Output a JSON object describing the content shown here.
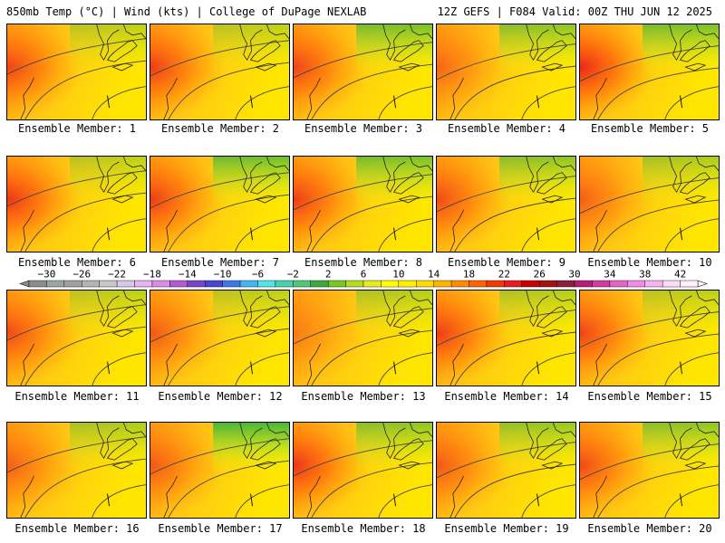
{
  "header": {
    "left": "850mb Temp (°C) | Wind (kts) | College of DuPage NEXLAB",
    "right": "12Z GEFS | F084 Valid: 00Z THU JUN 12 2025"
  },
  "panels": [
    {
      "label": "Ensemble Member: 1",
      "hot": 0.75,
      "cool": 0.35
    },
    {
      "label": "Ensemble Member: 2",
      "hot": 0.8,
      "cool": 0.35
    },
    {
      "label": "Ensemble Member: 3",
      "hot": 0.75,
      "cool": 0.7
    },
    {
      "label": "Ensemble Member: 4",
      "hot": 0.5,
      "cool": 0.6
    },
    {
      "label": "Ensemble Member: 5",
      "hot": 0.95,
      "cool": 0.7
    },
    {
      "label": "Ensemble Member: 6",
      "hot": 0.85,
      "cool": 0.35
    },
    {
      "label": "Ensemble Member: 7",
      "hot": 0.8,
      "cool": 0.75
    },
    {
      "label": "Ensemble Member: 8",
      "hot": 0.8,
      "cool": 0.7
    },
    {
      "label": "Ensemble Member: 9",
      "hot": 0.7,
      "cool": 0.6
    },
    {
      "label": "Ensemble Member: 10",
      "hot": 0.55,
      "cool": 0.45
    },
    {
      "label": "Ensemble Member: 11",
      "hot": 0.7,
      "cool": 0.35
    },
    {
      "label": "Ensemble Member: 12",
      "hot": 0.6,
      "cool": 0.35
    },
    {
      "label": "Ensemble Member: 13",
      "hot": 0.35,
      "cool": 0.4
    },
    {
      "label": "Ensemble Member: 14",
      "hot": 0.8,
      "cool": 0.4
    },
    {
      "label": "Ensemble Member: 15",
      "hot": 0.75,
      "cool": 0.35
    },
    {
      "label": "Ensemble Member: 16",
      "hot": 0.55,
      "cool": 0.45
    },
    {
      "label": "Ensemble Member: 17",
      "hot": 0.6,
      "cool": 0.95
    },
    {
      "label": "Ensemble Member: 18",
      "hot": 0.85,
      "cool": 0.6
    },
    {
      "label": "Ensemble Member: 19",
      "hot": 0.6,
      "cool": 0.55
    },
    {
      "label": "Ensemble Member: 20",
      "hot": 0.7,
      "cool": 0.6
    }
  ],
  "colorbar": {
    "labels": [
      "-30",
      "-26",
      "-22",
      "-18",
      "-14",
      "-10",
      "-6",
      "-2",
      "2",
      "6",
      "10",
      "14",
      "18",
      "22",
      "26",
      "30",
      "34",
      "38",
      "42"
    ],
    "colors": [
      "#8c8c8c",
      "#9aa6a6",
      "#a0a0a0",
      "#b4b4b4",
      "#c8c8c8",
      "#d6c8e6",
      "#e6b4f0",
      "#dc8ce6",
      "#b45ad2",
      "#7846c8",
      "#4646d2",
      "#3c78e6",
      "#46b4f0",
      "#50e6e6",
      "#46d2aa",
      "#50c878",
      "#3caa3c",
      "#78c81e",
      "#b4dc1e",
      "#e6ec1e",
      "#ffff00",
      "#fff000",
      "#ffdc00",
      "#ffb400",
      "#ff8c00",
      "#ff6400",
      "#f03c00",
      "#e61e1e",
      "#c80000",
      "#a01414",
      "#8c1e3c",
      "#b41e78",
      "#d23ca0",
      "#e664c8",
      "#f08ce6",
      "#f5b4f0",
      "#fadcf5",
      "#fff0fa"
    ]
  }
}
